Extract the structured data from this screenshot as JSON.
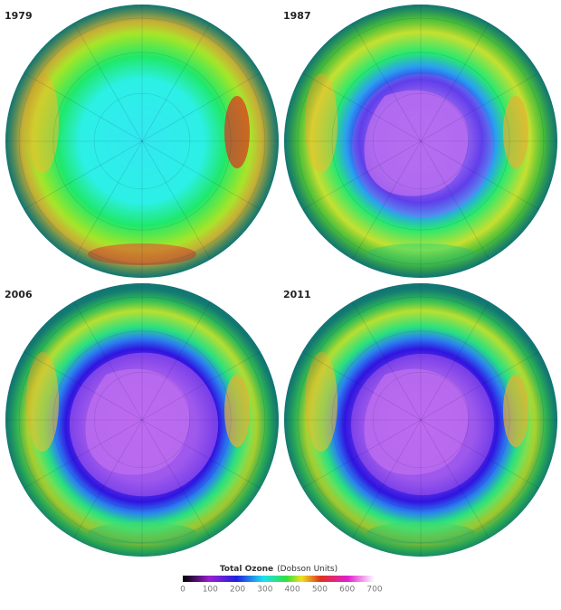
{
  "panels": [
    {
      "label": "1979"
    },
    {
      "label": "1987"
    },
    {
      "label": "2006"
    },
    {
      "label": "2011"
    }
  ],
  "colorbar": {
    "title": "Total Ozone",
    "unit": "(Dobson Units)",
    "ticks": [
      0,
      100,
      200,
      300,
      400,
      500,
      600,
      700
    ]
  }
}
